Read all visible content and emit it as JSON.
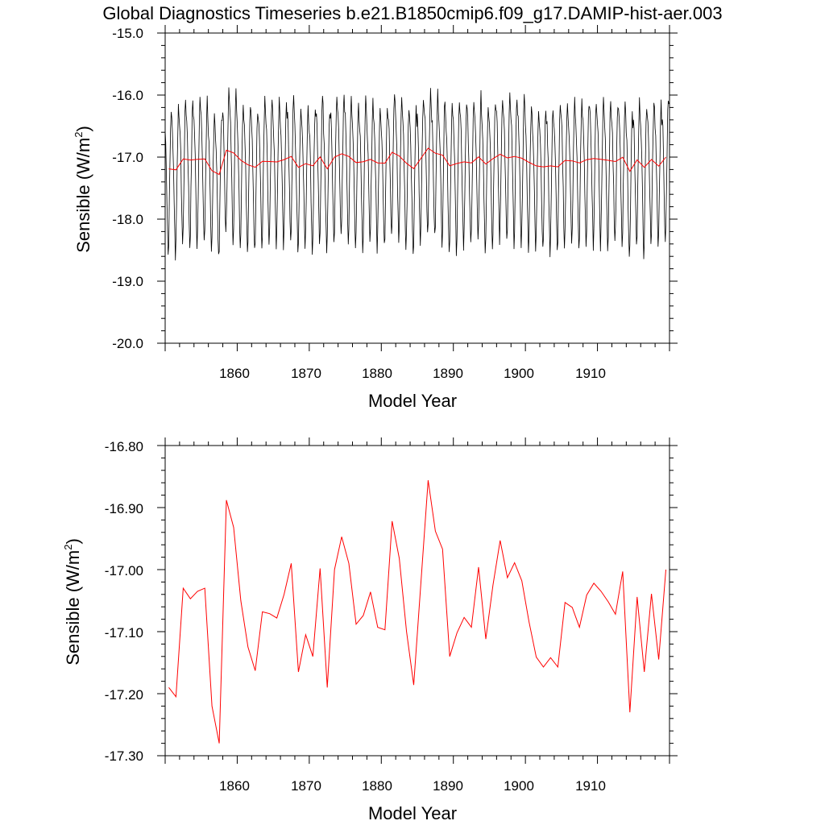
{
  "title": "Global Diagnostics Timeseries b.e21.B1850cmip6.f09_g17.DAMIP-hist-aer.003",
  "colors": {
    "monthly": "#000000",
    "annual": "#ff0000",
    "axes": "#000000"
  },
  "top": {
    "ylabel_main": "Sensible (W/m",
    "ylabel_sup": "2",
    "ylabel_end": ")",
    "xlabel": "Model Year",
    "yticks": [
      "-15.0",
      "-16.0",
      "-17.0",
      "-18.0",
      "-19.0",
      "-20.0"
    ],
    "xticks": [
      "1860",
      "1870",
      "1880",
      "1890",
      "1900",
      "1910"
    ]
  },
  "bottom": {
    "ylabel_main": "Sensible (W/m",
    "ylabel_sup": "2",
    "ylabel_end": ")",
    "xlabel": "Model Year",
    "yticks": [
      "-16.80",
      "-16.90",
      "-17.00",
      "-17.10",
      "-17.20",
      "-17.30"
    ],
    "xticks": [
      "1860",
      "1870",
      "1880",
      "1890",
      "1900",
      "1910"
    ]
  },
  "chart_data": [
    {
      "type": "line",
      "title": "Global Diagnostics Timeseries b.e21.B1850cmip6.f09_g17.DAMIP-hist-aer.003",
      "xlabel": "Model Year",
      "ylabel": "Sensible (W/m2)",
      "xlim": [
        1850,
        1920
      ],
      "ylim": [
        -20.0,
        -15.0
      ],
      "grid": false,
      "series": [
        {
          "color": "#000000",
          "monthly_cycle": [
            -16.45,
            -16.65,
            -17.05,
            -17.55,
            -18.05,
            -18.45,
            -18.2,
            -17.6,
            -16.95,
            -16.4,
            -16.1,
            -16.3
          ],
          "anomaly_scale": 0.22
        },
        {
          "color": "#ff0000",
          "x": [
            1850,
            1851,
            1852,
            1853,
            1854,
            1855,
            1856,
            1857,
            1858,
            1859,
            1860,
            1861,
            1862,
            1863,
            1864,
            1865,
            1866,
            1867,
            1868,
            1869,
            1870,
            1871,
            1872,
            1873,
            1874,
            1875,
            1876,
            1877,
            1878,
            1879,
            1880,
            1881,
            1882,
            1883,
            1884,
            1885,
            1886,
            1887,
            1888,
            1889,
            1890,
            1891,
            1892,
            1893,
            1894,
            1895,
            1896,
            1897,
            1898,
            1899,
            1900,
            1901,
            1902,
            1903,
            1904,
            1905,
            1906,
            1907,
            1908,
            1909,
            1910,
            1911,
            1912,
            1913,
            1914,
            1915,
            1916,
            1917,
            1918,
            1919
          ],
          "y": [
            -17.19,
            -17.205,
            -17.03,
            -17.047,
            -17.035,
            -17.03,
            -17.22,
            -17.28,
            -16.888,
            -16.932,
            -17.05,
            -17.125,
            -17.163,
            -17.068,
            -17.071,
            -17.078,
            -17.04,
            -16.99,
            -17.165,
            -17.105,
            -17.14,
            -16.998,
            -17.19,
            -17.0,
            -16.947,
            -16.99,
            -17.088,
            -17.074,
            -17.036,
            -17.093,
            -17.097,
            -16.922,
            -16.982,
            -17.1,
            -17.186,
            -17.02,
            -16.856,
            -16.938,
            -16.967,
            -17.14,
            -17.102,
            -17.077,
            -17.093,
            -16.996,
            -17.112,
            -17.025,
            -16.953,
            -17.013,
            -16.989,
            -17.018,
            -17.084,
            -17.141,
            -17.157,
            -17.142,
            -17.157,
            -17.053,
            -17.061,
            -17.093,
            -17.041,
            -17.022,
            -17.035,
            -17.052,
            -17.072,
            -17.003,
            -17.23,
            -17.044,
            -17.165,
            -17.039,
            -17.145,
            -17.0
          ]
        }
      ]
    },
    {
      "type": "line",
      "title": "",
      "xlabel": "Model Year",
      "ylabel": "Sensible (W/m2)",
      "xlim": [
        1850,
        1920
      ],
      "ylim": [
        -17.3,
        -16.8
      ],
      "grid": false,
      "series": [
        {
          "color": "#ff0000",
          "x": [
            1850,
            1851,
            1852,
            1853,
            1854,
            1855,
            1856,
            1857,
            1858,
            1859,
            1860,
            1861,
            1862,
            1863,
            1864,
            1865,
            1866,
            1867,
            1868,
            1869,
            1870,
            1871,
            1872,
            1873,
            1874,
            1875,
            1876,
            1877,
            1878,
            1879,
            1880,
            1881,
            1882,
            1883,
            1884,
            1885,
            1886,
            1887,
            1888,
            1889,
            1890,
            1891,
            1892,
            1893,
            1894,
            1895,
            1896,
            1897,
            1898,
            1899,
            1900,
            1901,
            1902,
            1903,
            1904,
            1905,
            1906,
            1907,
            1908,
            1909,
            1910,
            1911,
            1912,
            1913,
            1914,
            1915,
            1916,
            1917,
            1918,
            1919
          ],
          "y": [
            -17.19,
            -17.205,
            -17.03,
            -17.047,
            -17.035,
            -17.03,
            -17.22,
            -17.28,
            -16.888,
            -16.932,
            -17.05,
            -17.125,
            -17.163,
            -17.068,
            -17.071,
            -17.078,
            -17.04,
            -16.99,
            -17.165,
            -17.105,
            -17.14,
            -16.998,
            -17.19,
            -17.0,
            -16.947,
            -16.99,
            -17.088,
            -17.074,
            -17.036,
            -17.093,
            -17.097,
            -16.922,
            -16.982,
            -17.1,
            -17.186,
            -17.02,
            -16.856,
            -16.938,
            -16.967,
            -17.14,
            -17.102,
            -17.077,
            -17.093,
            -16.996,
            -17.112,
            -17.025,
            -16.953,
            -17.013,
            -16.989,
            -17.018,
            -17.084,
            -17.141,
            -17.157,
            -17.142,
            -17.157,
            -17.053,
            -17.061,
            -17.093,
            -17.041,
            -17.022,
            -17.035,
            -17.052,
            -17.072,
            -17.003,
            -17.23,
            -17.044,
            -17.165,
            -17.039,
            -17.145,
            -17.0
          ]
        }
      ]
    }
  ]
}
